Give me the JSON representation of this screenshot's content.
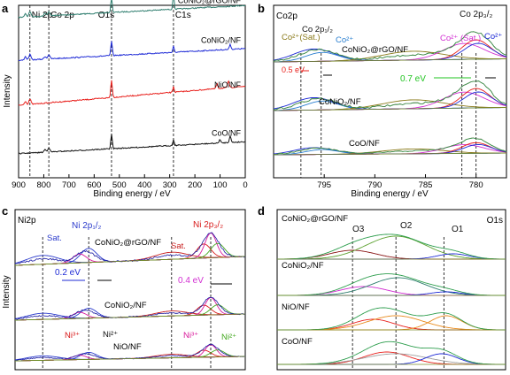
{
  "chart_data": [
    {
      "panel": "a",
      "type": "line",
      "xlabel": "Binding energy / eV",
      "ylabel": "Intensity",
      "xlim": [
        900,
        0
      ],
      "x_ticks": [
        "900",
        "800",
        "700",
        "600",
        "500",
        "400",
        "300",
        "200",
        "100",
        "0"
      ],
      "ref_labels": [
        {
          "text": "Ni 2p",
          "x": 855
        },
        {
          "text": "Co 2p",
          "x": 780
        },
        {
          "text": "O1s",
          "x": 531
        },
        {
          "text": "C1s",
          "x": 285
        }
      ],
      "series": [
        {
          "name": "CoNiO₂@rGO/NF",
          "color": "#2e7d6e",
          "base": 0.93
        },
        {
          "name": "CoNiO₂/NF",
          "color": "#1f2bd6",
          "base": 0.68
        },
        {
          "name": "NiO/NF",
          "color": "#e8201c",
          "base": 0.42
        },
        {
          "name": "CoO/NF",
          "color": "#111111",
          "base": 0.14
        }
      ]
    },
    {
      "panel": "b",
      "type": "line",
      "title": "Co2p",
      "xlabel": "Binding energy / eV",
      "xlim": [
        800,
        777
      ],
      "x_ticks": [
        "795",
        "790",
        "785",
        "780"
      ],
      "ref_lines": [
        797.3,
        795.3,
        781.4,
        780.0
      ],
      "peak_labels": [
        {
          "text": "Co²⁺(Sat.)",
          "color": "#8a7a1a"
        },
        {
          "text": "Co 2p₁/₂",
          "color": "#111111"
        },
        {
          "text": "Co²⁺",
          "color": "#2a7fd0"
        },
        {
          "text": "Co 2p₃/₂",
          "color": "#111111"
        },
        {
          "text": "Co²⁺ (Sat.)",
          "color": "#d22fd2"
        },
        {
          "text": "Co²⁺",
          "color": "#1f2bd6"
        }
      ],
      "annotations": [
        {
          "text": "0.5 eV",
          "color": "#e8201c"
        },
        {
          "text": "0.7 eV",
          "color": "#22c422"
        }
      ],
      "series": [
        {
          "name": "CoNiO₂@rGO/NF"
        },
        {
          "name": "CoNiO₂/NF"
        },
        {
          "name": "CoO/NF"
        }
      ]
    },
    {
      "panel": "c",
      "type": "line",
      "title": "Ni2p",
      "xlabel": "",
      "ylabel": "Intensity",
      "peak_labels": [
        {
          "text": "Sat.",
          "color": "#2b3bcc"
        },
        {
          "text": "Ni 2p₁/₂",
          "color": "#2b3bcc"
        },
        {
          "text": "Sat.",
          "color": "#c82020"
        },
        {
          "text": "Ni 2p₃/₂",
          "color": "#d81b1b"
        },
        {
          "text": "Ni³⁺",
          "color": "#d81b1b"
        },
        {
          "text": "Ni²⁺",
          "color": "#111111"
        },
        {
          "text": "Ni³⁺",
          "color": "#d81b9c"
        },
        {
          "text": "Ni²⁺",
          "color": "#44a820"
        }
      ],
      "annotations": [
        {
          "text": "0.2 eV",
          "color": "#1f2bd6"
        },
        {
          "text": "0.4 eV",
          "color": "#d22fd2"
        }
      ],
      "series": [
        {
          "name": "CoNiO₂@rGO/NF"
        },
        {
          "name": "CoNiO₂/NF"
        },
        {
          "name": "NiO/NF"
        }
      ]
    },
    {
      "panel": "d",
      "type": "line",
      "title": "O1s",
      "peak_labels": [
        {
          "text": "O3",
          "color": "#111111"
        },
        {
          "text": "O2",
          "color": "#111111"
        },
        {
          "text": "O1",
          "color": "#111111"
        }
      ],
      "series": [
        {
          "name": "CoNiO₂@rGO/NF"
        },
        {
          "name": "CoNiO₂/NF"
        },
        {
          "name": "NiO/NF"
        },
        {
          "name": "CoO/NF"
        }
      ]
    }
  ]
}
